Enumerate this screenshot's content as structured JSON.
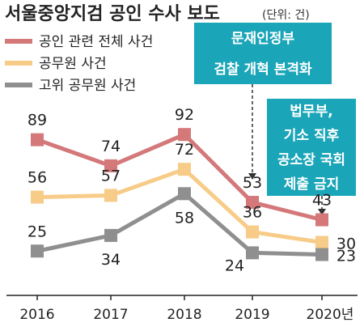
{
  "chart_data": {
    "type": "line",
    "title": "서울중앙지검 공인 수사 보도",
    "unit": "(단위: 건)",
    "categories": [
      "2016",
      "2017",
      "2018",
      "2019",
      "2020년"
    ],
    "series": [
      {
        "name": "공인 관련 전체 사건",
        "values": [
          89,
          74,
          92,
          53,
          43
        ],
        "color": "#d4787a"
      },
      {
        "name": "공무원 사건",
        "values": [
          56,
          57,
          72,
          36,
          30
        ],
        "color": "#f7cc88"
      },
      {
        "name": "고위 공무원 사건",
        "values": [
          25,
          34,
          58,
          24,
          23
        ],
        "color": "#8f8f8f"
      }
    ],
    "grid": false,
    "legend_placement": "top-left",
    "annotations": [
      {
        "lines": [
          "문재인정부",
          "검찰 개혁 본격화"
        ],
        "category": "2019"
      },
      {
        "lines": [
          "법무부,",
          "기소 직후",
          "공소장 국회",
          "제출 금지"
        ],
        "category": "2020년"
      }
    ]
  },
  "colors": {
    "callout_bg": "#1aa5b8",
    "axis": "#222222"
  }
}
